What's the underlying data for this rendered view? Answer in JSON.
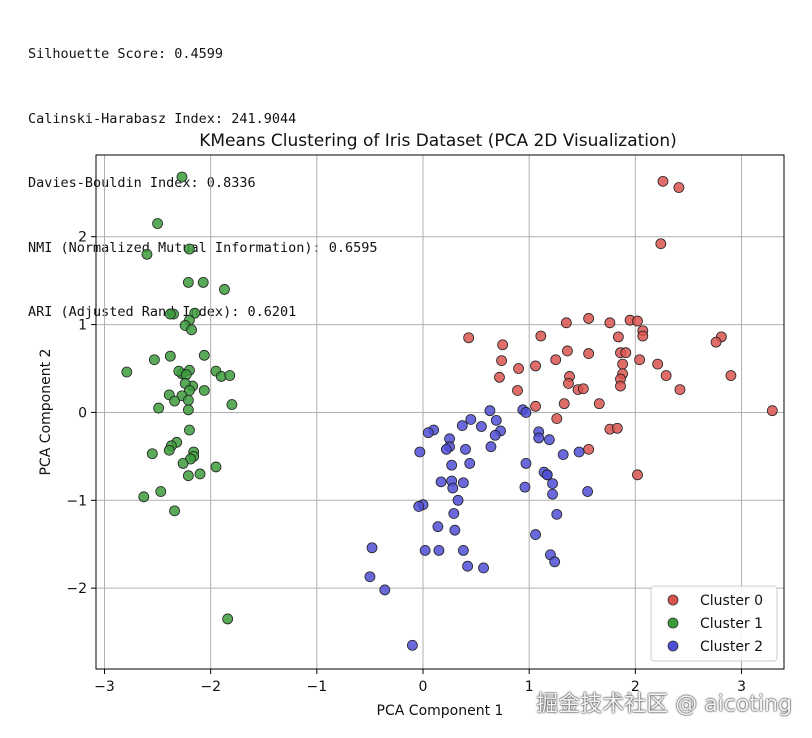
{
  "metrics": [
    "Silhouette Score: 0.4599",
    "Calinski-Harabasz Index: 241.9044",
    "Davies-Bouldin Index: 0.8336",
    "NMI (Normalized Mutual Information): 0.6595",
    "ARI (Adjusted Rand Index): 0.6201"
  ],
  "watermark": "掘金技术社区 @ aicoting",
  "chart_data": {
    "type": "scatter",
    "title": "KMeans Clustering of Iris Dataset (PCA 2D Visualization)",
    "xlabel": "PCA Component 1",
    "ylabel": "PCA Component 2",
    "xlim": [
      -3.08,
      3.4
    ],
    "ylim": [
      -2.92,
      2.93
    ],
    "xticks": [
      -3,
      -2,
      -1,
      0,
      1,
      2,
      3
    ],
    "yticks": [
      -2,
      -1,
      0,
      1,
      2
    ],
    "xtick_labels": [
      "−3",
      "−2",
      "−1",
      "0",
      "1",
      "2",
      "3"
    ],
    "ytick_labels": [
      "−2",
      "−1",
      "0",
      "1",
      "2"
    ],
    "grid": true,
    "legend_position": "lower right",
    "series": [
      {
        "name": "Cluster 0",
        "color": "#d9534f",
        "points": [
          [
            2.26,
            2.63
          ],
          [
            2.41,
            2.56
          ],
          [
            2.24,
            1.92
          ],
          [
            1.95,
            1.05
          ],
          [
            2.02,
            1.04
          ],
          [
            1.56,
            1.07
          ],
          [
            1.76,
            1.02
          ],
          [
            1.35,
            1.02
          ],
          [
            2.07,
            0.93
          ],
          [
            1.11,
            0.87
          ],
          [
            0.43,
            0.85
          ],
          [
            1.84,
            0.86
          ],
          [
            2.07,
            0.87
          ],
          [
            2.81,
            0.86
          ],
          [
            2.76,
            0.8
          ],
          [
            0.75,
            0.77
          ],
          [
            1.36,
            0.7
          ],
          [
            1.56,
            0.67
          ],
          [
            1.86,
            0.68
          ],
          [
            1.91,
            0.68
          ],
          [
            1.25,
            0.6
          ],
          [
            2.04,
            0.6
          ],
          [
            0.74,
            0.59
          ],
          [
            1.06,
            0.53
          ],
          [
            1.88,
            0.55
          ],
          [
            2.21,
            0.55
          ],
          [
            0.9,
            0.5
          ],
          [
            1.38,
            0.41
          ],
          [
            1.88,
            0.44
          ],
          [
            2.29,
            0.42
          ],
          [
            2.9,
            0.42
          ],
          [
            0.72,
            0.4
          ],
          [
            1.86,
            0.38
          ],
          [
            1.86,
            0.3
          ],
          [
            1.37,
            0.33
          ],
          [
            1.46,
            0.26
          ],
          [
            1.51,
            0.27
          ],
          [
            2.42,
            0.26
          ],
          [
            0.89,
            0.25
          ],
          [
            1.06,
            0.07
          ],
          [
            1.66,
            0.1
          ],
          [
            1.33,
            0.1
          ],
          [
            3.29,
            0.02
          ],
          [
            1.26,
            -0.07
          ],
          [
            1.76,
            -0.19
          ],
          [
            1.83,
            -0.18
          ],
          [
            1.56,
            -0.42
          ],
          [
            2.02,
            -0.71
          ]
        ]
      },
      {
        "name": "Cluster 1",
        "color": "#3c9c3c",
        "points": [
          [
            -2.27,
            2.68
          ],
          [
            -2.5,
            2.15
          ],
          [
            -2.2,
            1.86
          ],
          [
            -2.6,
            1.8
          ],
          [
            -2.21,
            1.48
          ],
          [
            -2.07,
            1.48
          ],
          [
            -1.87,
            1.4
          ],
          [
            -2.15,
            1.13
          ],
          [
            -2.35,
            1.12
          ],
          [
            -2.38,
            1.12
          ],
          [
            -2.2,
            1.05
          ],
          [
            -2.24,
            0.99
          ],
          [
            -2.18,
            0.94
          ],
          [
            -2.38,
            0.64
          ],
          [
            -2.53,
            0.6
          ],
          [
            -2.06,
            0.65
          ],
          [
            -2.79,
            0.46
          ],
          [
            -2.2,
            0.48
          ],
          [
            -2.27,
            0.44
          ],
          [
            -2.3,
            0.47
          ],
          [
            -1.95,
            0.47
          ],
          [
            -2.23,
            0.43
          ],
          [
            -1.9,
            0.41
          ],
          [
            -1.82,
            0.42
          ],
          [
            -2.17,
            0.3
          ],
          [
            -2.24,
            0.33
          ],
          [
            -2.2,
            0.25
          ],
          [
            -2.06,
            0.25
          ],
          [
            -2.39,
            0.2
          ],
          [
            -2.27,
            0.19
          ],
          [
            -2.34,
            0.13
          ],
          [
            -2.21,
            0.14
          ],
          [
            -2.21,
            0.03
          ],
          [
            -2.49,
            0.05
          ],
          [
            -1.8,
            0.09
          ],
          [
            -2.2,
            -0.2
          ],
          [
            -2.32,
            -0.34
          ],
          [
            -2.37,
            -0.38
          ],
          [
            -2.39,
            -0.43
          ],
          [
            -2.55,
            -0.47
          ],
          [
            -2.16,
            -0.45
          ],
          [
            -2.16,
            -0.5
          ],
          [
            -2.19,
            -0.53
          ],
          [
            -2.26,
            -0.58
          ],
          [
            -1.95,
            -0.62
          ],
          [
            -2.21,
            -0.72
          ],
          [
            -2.1,
            -0.7
          ],
          [
            -2.47,
            -0.9
          ],
          [
            -2.63,
            -0.96
          ],
          [
            -2.34,
            -1.12
          ],
          [
            -1.84,
            -2.35
          ]
        ]
      },
      {
        "name": "Cluster 2",
        "color": "#4f4fd6",
        "points": [
          [
            0.63,
            0.02
          ],
          [
            0.94,
            0.03
          ],
          [
            0.97,
            0.0
          ],
          [
            0.45,
            -0.08
          ],
          [
            0.69,
            -0.09
          ],
          [
            0.37,
            -0.15
          ],
          [
            0.55,
            -0.16
          ],
          [
            0.73,
            -0.21
          ],
          [
            0.68,
            -0.26
          ],
          [
            0.1,
            -0.2
          ],
          [
            0.05,
            -0.23
          ],
          [
            0.25,
            -0.3
          ],
          [
            1.09,
            -0.22
          ],
          [
            1.09,
            -0.29
          ],
          [
            1.19,
            -0.31
          ],
          [
            0.25,
            -0.39
          ],
          [
            0.64,
            -0.39
          ],
          [
            0.4,
            -0.42
          ],
          [
            1.32,
            -0.48
          ],
          [
            1.47,
            -0.45
          ],
          [
            0.22,
            -0.42
          ],
          [
            -0.03,
            -0.45
          ],
          [
            0.44,
            -0.58
          ],
          [
            0.27,
            -0.6
          ],
          [
            0.97,
            -0.58
          ],
          [
            1.14,
            -0.68
          ],
          [
            1.17,
            -0.71
          ],
          [
            1.17,
            -0.71
          ],
          [
            0.27,
            -0.78
          ],
          [
            0.17,
            -0.79
          ],
          [
            0.38,
            -0.8
          ],
          [
            1.22,
            -0.81
          ],
          [
            0.96,
            -0.85
          ],
          [
            0.28,
            -0.86
          ],
          [
            1.22,
            -0.93
          ],
          [
            1.55,
            -0.9
          ],
          [
            0.33,
            -1.0
          ],
          [
            0.0,
            -1.05
          ],
          [
            -0.04,
            -1.07
          ],
          [
            0.29,
            -1.15
          ],
          [
            1.26,
            -1.16
          ],
          [
            0.14,
            -1.3
          ],
          [
            0.3,
            -1.34
          ],
          [
            1.06,
            -1.39
          ],
          [
            -0.48,
            -1.54
          ],
          [
            0.02,
            -1.57
          ],
          [
            0.15,
            -1.57
          ],
          [
            0.38,
            -1.57
          ],
          [
            1.2,
            -1.62
          ],
          [
            1.24,
            -1.7
          ],
          [
            0.42,
            -1.75
          ],
          [
            0.57,
            -1.77
          ],
          [
            -0.5,
            -1.87
          ],
          [
            -0.36,
            -2.02
          ],
          [
            -0.1,
            -2.65
          ]
        ]
      }
    ]
  }
}
